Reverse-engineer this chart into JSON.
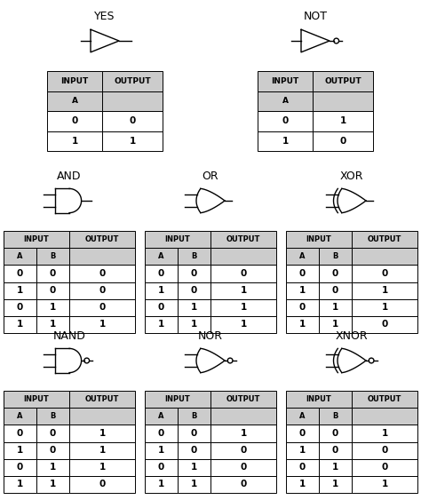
{
  "bg_color": "#ffffff",
  "header_bg": "#cccccc",
  "cell_bg": "#ffffff",
  "border_color": "#000000",
  "text_color": "#000000",
  "gates": [
    {
      "name": "YES",
      "type": "buffer",
      "col": 0,
      "row": 0,
      "truth_header1": [
        "INPUT",
        "OUTPUT"
      ],
      "truth_header2": [
        "A",
        ""
      ],
      "truth_data": [
        [
          "0",
          "0"
        ],
        [
          "1",
          "1"
        ]
      ]
    },
    {
      "name": "NOT",
      "type": "not",
      "col": 1,
      "row": 0,
      "truth_header1": [
        "INPUT",
        "OUTPUT"
      ],
      "truth_header2": [
        "A",
        ""
      ],
      "truth_data": [
        [
          "0",
          "1"
        ],
        [
          "1",
          "0"
        ]
      ]
    },
    {
      "name": "AND",
      "type": "and",
      "col": 0,
      "row": 1,
      "truth_header1": [
        "INPUT",
        "OUTPUT"
      ],
      "truth_header2": [
        "A",
        "B",
        ""
      ],
      "truth_data": [
        [
          "0",
          "0",
          "0"
        ],
        [
          "1",
          "0",
          "0"
        ],
        [
          "0",
          "1",
          "0"
        ],
        [
          "1",
          "1",
          "1"
        ]
      ]
    },
    {
      "name": "OR",
      "type": "or",
      "col": 1,
      "row": 1,
      "truth_header1": [
        "INPUT",
        "OUTPUT"
      ],
      "truth_header2": [
        "A",
        "B",
        ""
      ],
      "truth_data": [
        [
          "0",
          "0",
          "0"
        ],
        [
          "1",
          "0",
          "1"
        ],
        [
          "0",
          "1",
          "1"
        ],
        [
          "1",
          "1",
          "1"
        ]
      ]
    },
    {
      "name": "XOR",
      "type": "xor",
      "col": 2,
      "row": 1,
      "truth_header1": [
        "INPUT",
        "OUTPUT"
      ],
      "truth_header2": [
        "A",
        "B",
        ""
      ],
      "truth_data": [
        [
          "0",
          "0",
          "0"
        ],
        [
          "1",
          "0",
          "1"
        ],
        [
          "0",
          "1",
          "1"
        ],
        [
          "1",
          "1",
          "0"
        ]
      ]
    },
    {
      "name": "NAND",
      "type": "nand",
      "col": 0,
      "row": 2,
      "truth_header1": [
        "INPUT",
        "OUTPUT"
      ],
      "truth_header2": [
        "A",
        "B",
        ""
      ],
      "truth_data": [
        [
          "0",
          "0",
          "1"
        ],
        [
          "1",
          "0",
          "1"
        ],
        [
          "0",
          "1",
          "1"
        ],
        [
          "1",
          "1",
          "0"
        ]
      ]
    },
    {
      "name": "NOR",
      "type": "nor",
      "col": 1,
      "row": 2,
      "truth_header1": [
        "INPUT",
        "OUTPUT"
      ],
      "truth_header2": [
        "A",
        "B",
        ""
      ],
      "truth_data": [
        [
          "0",
          "0",
          "1"
        ],
        [
          "1",
          "0",
          "0"
        ],
        [
          "0",
          "1",
          "0"
        ],
        [
          "1",
          "1",
          "0"
        ]
      ]
    },
    {
      "name": "XNOR",
      "type": "xnor",
      "col": 2,
      "row": 2,
      "truth_header1": [
        "INPUT",
        "OUTPUT"
      ],
      "truth_header2": [
        "A",
        "B",
        ""
      ],
      "truth_data": [
        [
          "0",
          "0",
          "1"
        ],
        [
          "1",
          "0",
          "0"
        ],
        [
          "0",
          "1",
          "0"
        ],
        [
          "1",
          "1",
          "1"
        ]
      ]
    }
  ]
}
